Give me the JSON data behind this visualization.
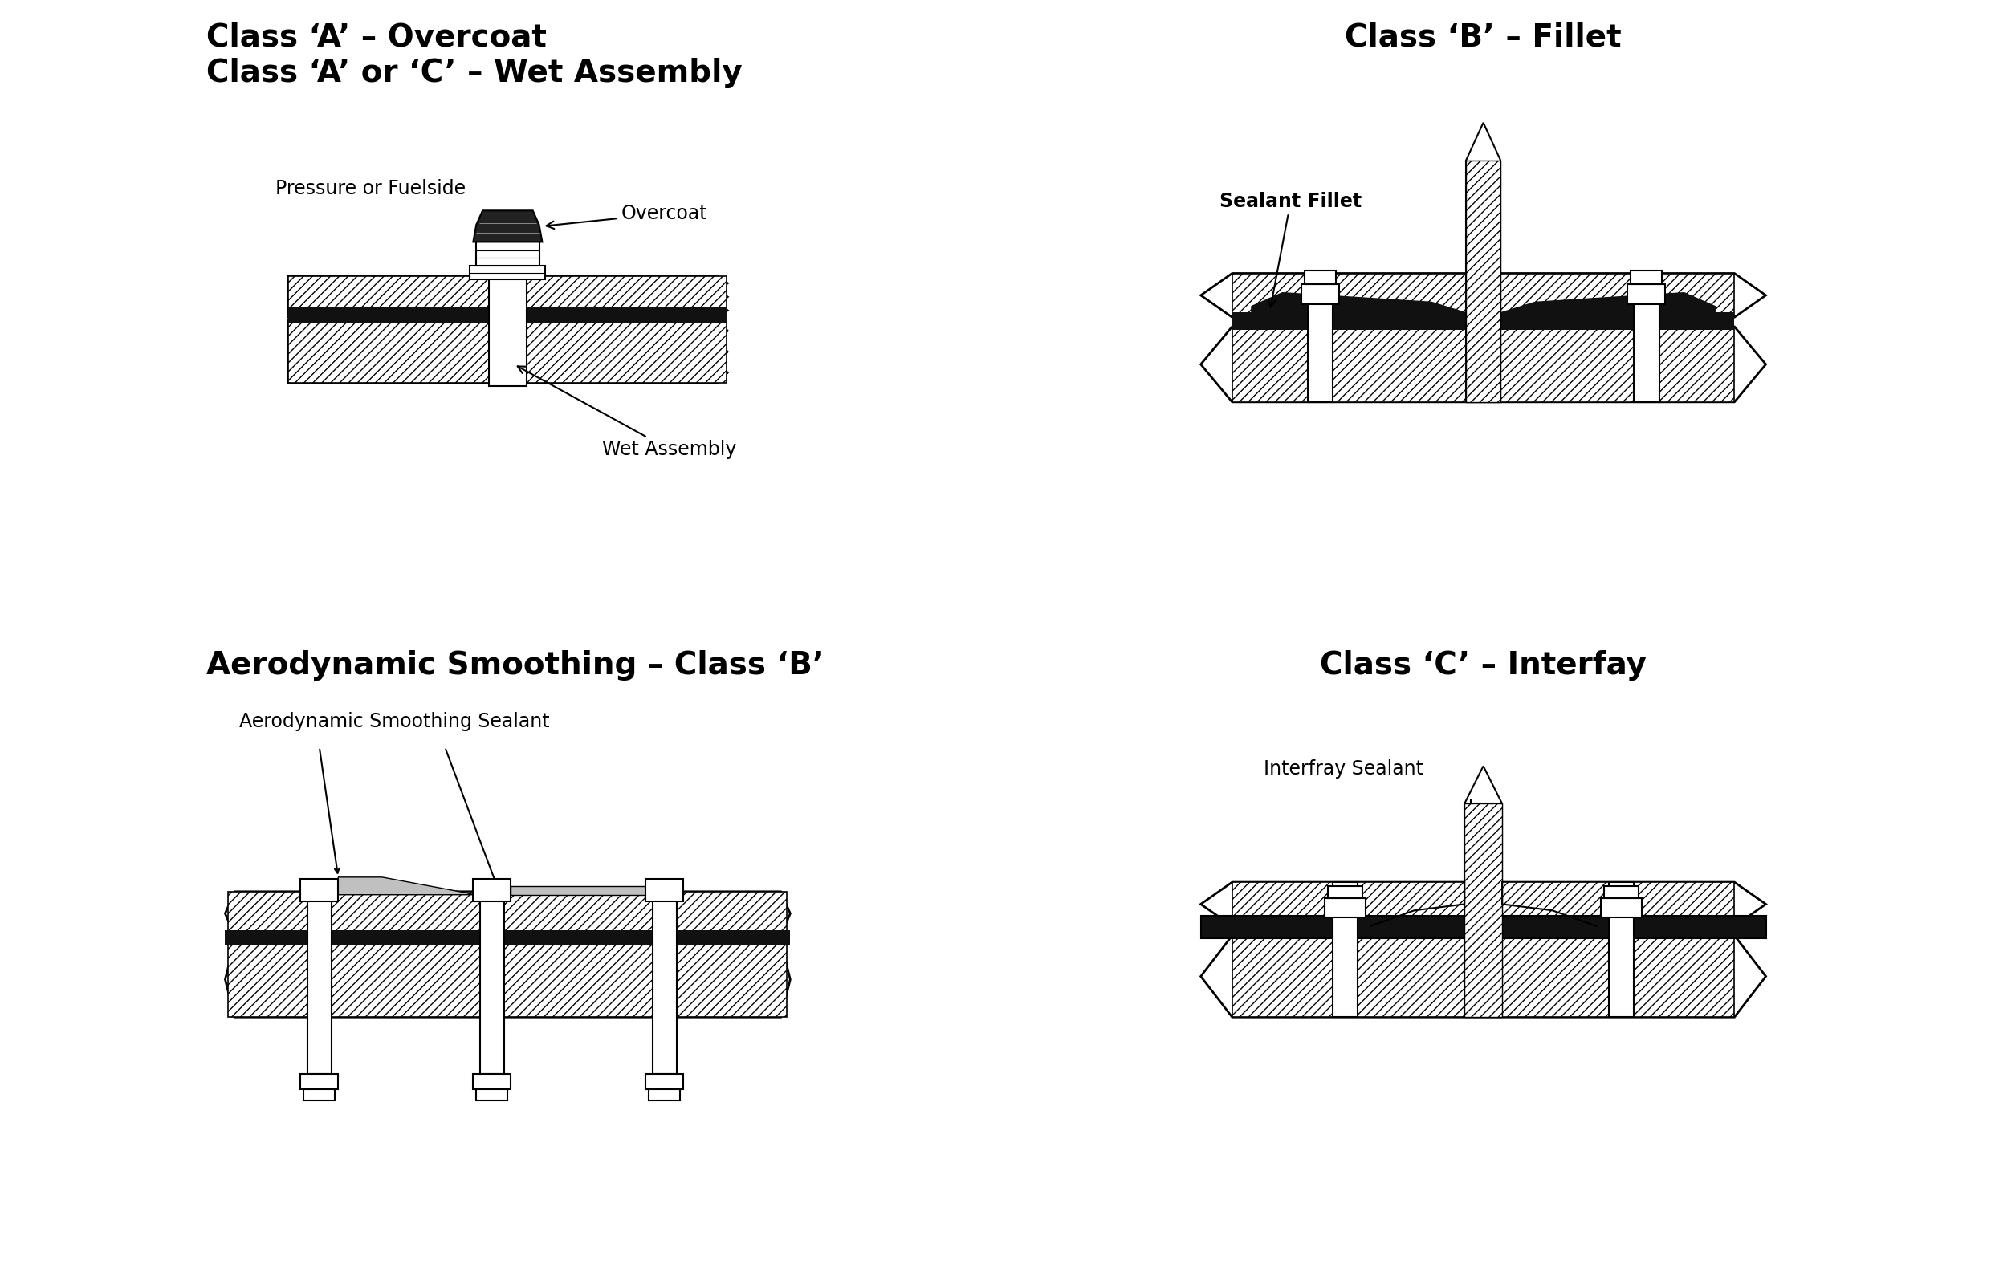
{
  "bg_color": "#ffffff",
  "title_tl": "Class ‘A’ – Overcoat\nClass ‘A’ or ‘C’ – Wet Assembly",
  "title_tr": "Class ‘B’ – Fillet",
  "title_bl": "Aerodynamic Smoothing – Class ‘B’",
  "title_br": "Class ‘C’ – Interfay",
  "label_pressure": "Pressure or Fuelside",
  "label_overcoat": "Overcoat",
  "label_wet_assembly": "Wet Assembly",
  "label_sealant_fillet": "Sealant Fillet",
  "label_aero_smoothing": "Aerodynamic Smoothing Sealant",
  "label_interfray": "Interfray Sealant",
  "hatch_color": "#000000",
  "line_color": "#000000",
  "sealant_gray": "#c0c0c0",
  "black_sealant": "#111111",
  "title_fontsize": 28,
  "label_fontsize": 17
}
